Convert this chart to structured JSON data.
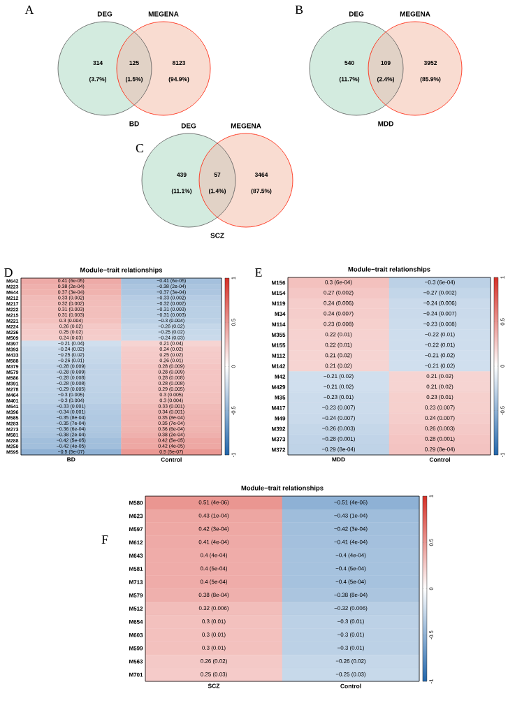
{
  "chart_data": [
    {
      "type": "other",
      "title": "A",
      "categories": [
        "DEG",
        null,
        "MEGENA"
      ],
      "colors": [
        "#d3ebdf",
        "#e1d2c6",
        "#f9dcd1"
      ],
      "values": [
        314,
        125,
        8123
      ],
      "data_labels": true,
      "annotations": [
        "(3.7%)",
        "(1.5%)",
        "(94.9%)"
      ],
      "xlabel": "BD"
    },
    {
      "type": "other",
      "title": "B",
      "categories": [
        "DEG",
        null,
        "MEGENA"
      ],
      "colors": [
        "#d3ebdf",
        "#e1d2c6",
        "#f9dcd1"
      ],
      "values": [
        540,
        109,
        3952
      ],
      "data_labels": true,
      "annotations": [
        "(11.7%)",
        "(2.4%)",
        "(85.9%)"
      ],
      "xlabel": "MDD"
    },
    {
      "type": "other",
      "title": "C",
      "categories": [
        "DEG",
        null,
        "MEGENA"
      ],
      "colors": [
        "#d3ebdf",
        "#e1d2c6",
        "#f9dcd1"
      ],
      "values": [
        439,
        57,
        3464
      ],
      "data_labels": true,
      "annotations": [
        "(11.1%)",
        "(1.4%)",
        "(87.5%)"
      ],
      "xlabel": "SCZ"
    },
    {
      "type": "heatmap",
      "title": "Module−trait relationships",
      "annotations": [
        "D"
      ],
      "categories": [
        "BD",
        "Control"
      ],
      "y_categories": [
        "M642",
        "M223",
        "M644",
        "M212",
        "M217",
        "M222",
        "M215",
        "M221",
        "M224",
        "M236",
        "M509",
        "M397",
        "M393",
        "M433",
        "M588",
        "M379",
        "M579",
        "M586",
        "M391",
        "M278",
        "M464",
        "M401",
        "M541",
        "M396",
        "M585",
        "M283",
        "M273",
        "M581",
        "M288",
        "M250",
        "M595"
      ],
      "cells": [
        [
          0.41,
          -0.41
        ],
        [
          0.38,
          -0.38
        ],
        [
          0.37,
          -0.37
        ],
        [
          0.33,
          -0.33
        ],
        [
          0.32,
          -0.32
        ],
        [
          0.31,
          -0.31
        ],
        [
          0.31,
          -0.31
        ],
        [
          0.3,
          -0.3
        ],
        [
          0.26,
          -0.26
        ],
        [
          0.25,
          -0.25
        ],
        [
          0.24,
          -0.24
        ],
        [
          -0.21,
          0.21
        ],
        [
          -0.24,
          0.24
        ],
        [
          -0.25,
          0.25
        ],
        [
          -0.26,
          0.26
        ],
        [
          -0.28,
          0.28
        ],
        [
          -0.28,
          0.28
        ],
        [
          -0.28,
          0.28
        ],
        [
          -0.28,
          0.28
        ],
        [
          -0.29,
          0.29
        ],
        [
          -0.3,
          0.3
        ],
        [
          -0.3,
          0.3
        ],
        [
          -0.33,
          0.33
        ],
        [
          -0.34,
          0.34
        ],
        [
          -0.35,
          0.35
        ],
        [
          -0.35,
          0.35
        ],
        [
          -0.36,
          0.36
        ],
        [
          -0.38,
          0.38
        ],
        [
          -0.42,
          0.42
        ],
        [
          -0.42,
          0.42
        ],
        [
          -0.5,
          0.5
        ]
      ],
      "cell_labels": [
        [
          "0.41 (6e-05)",
          "−0.41 (6e-05)"
        ],
        [
          "0.38 (2e-04)",
          "−0.38 (2e-04)"
        ],
        [
          "0.37 (3e-04)",
          "−0.37 (3e-04)"
        ],
        [
          "0.33 (0.002)",
          "−0.33 (0.002)"
        ],
        [
          "0.32 (0.002)",
          "−0.32 (0.002)"
        ],
        [
          "0.31 (0.003)",
          "−0.31 (0.003)"
        ],
        [
          "0.31 (0.003)",
          "−0.31 (0.003)"
        ],
        [
          "0.3 (0.004)",
          "−0.3 (0.004)"
        ],
        [
          "0.26 (0.02)",
          "−0.26 (0.02)"
        ],
        [
          "0.25 (0.02)",
          "−0.25 (0.02)"
        ],
        [
          "0.24 (0.03)",
          "−0.24 (0.03)"
        ],
        [
          "−0.21 (0.04)",
          "0.21 (0.04)"
        ],
        [
          "−0.24 (0.02)",
          "0.24 (0.02)"
        ],
        [
          "−0.25 (0.02)",
          "0.25 (0.02)"
        ],
        [
          "−0.26 (0.01)",
          "0.26 (0.01)"
        ],
        [
          "−0.28 (0.009)",
          "0.28 (0.009)"
        ],
        [
          "−0.28 (0.009)",
          "0.28 (0.009)"
        ],
        [
          "−0.28 (0.008)",
          "0.28 (0.008)"
        ],
        [
          "−0.28 (0.008)",
          "0.28 (0.008)"
        ],
        [
          "−0.29 (0.005)",
          "0.29 (0.005)"
        ],
        [
          "−0.3 (0.005)",
          "0.3 (0.005)"
        ],
        [
          "−0.3 (0.004)",
          "0.3 (0.004)"
        ],
        [
          "−0.33 (0.001)",
          "0.33 (0.001)"
        ],
        [
          "−0.34 (0.001)",
          "0.34 (0.001)"
        ],
        [
          "−0.35 (8e-04)",
          "0.35 (8e-04)"
        ],
        [
          "−0.35 (7e-04)",
          "0.35 (7e-04)"
        ],
        [
          "−0.36 (6e-04)",
          "0.36 (6e-04)"
        ],
        [
          "−0.38 (2e-04)",
          "0.38 (2e-04)"
        ],
        [
          "−0.42 (5e-05)",
          "0.42 (5e-05)"
        ],
        [
          "−0.42 (4e-05)",
          "0.42 (4e-05)"
        ],
        [
          "−0.5 (5e-07)",
          "0.5 (5e-07)"
        ]
      ],
      "clim": [
        -1,
        1
      ],
      "cticks": [
        -1,
        -0.5,
        0,
        0.5,
        1
      ]
    },
    {
      "type": "heatmap",
      "title": "Module−trait relationships",
      "annotations": [
        "E"
      ],
      "categories": [
        "MDD",
        "Control"
      ],
      "y_categories": [
        "M156",
        "M154",
        "M119",
        "M34",
        "M114",
        "M355",
        "M155",
        "M112",
        "M142",
        "M42",
        "M429",
        "M35",
        "M417",
        "M49",
        "M392",
        "M373",
        "M372"
      ],
      "cells": [
        [
          0.3,
          -0.3
        ],
        [
          0.27,
          -0.27
        ],
        [
          0.24,
          -0.24
        ],
        [
          0.24,
          -0.24
        ],
        [
          0.23,
          -0.23
        ],
        [
          0.22,
          -0.22
        ],
        [
          0.22,
          -0.22
        ],
        [
          0.21,
          -0.21
        ],
        [
          0.21,
          -0.21
        ],
        [
          -0.21,
          0.21
        ],
        [
          -0.21,
          0.21
        ],
        [
          -0.23,
          0.23
        ],
        [
          -0.23,
          0.23
        ],
        [
          -0.24,
          0.24
        ],
        [
          -0.26,
          0.26
        ],
        [
          -0.28,
          0.28
        ],
        [
          -0.29,
          0.29
        ]
      ],
      "cell_labels": [
        [
          "0.3 (6e-04)",
          "−0.3 (6e-04)"
        ],
        [
          "0.27 (0.002)",
          "−0.27 (0.002)"
        ],
        [
          "0.24 (0.006)",
          "−0.24 (0.006)"
        ],
        [
          "0.24 (0.007)",
          "−0.24 (0.007)"
        ],
        [
          "0.23 (0.008)",
          "−0.23 (0.008)"
        ],
        [
          "0.22 (0.01)",
          "−0.22 (0.01)"
        ],
        [
          "0.22 (0.01)",
          "−0.22 (0.01)"
        ],
        [
          "0.21 (0.02)",
          "−0.21 (0.02)"
        ],
        [
          "0.21 (0.02)",
          "−0.21 (0.02)"
        ],
        [
          "−0.21 (0.02)",
          "0.21 (0.02)"
        ],
        [
          "−0.21 (0.02)",
          "0.21 (0.02)"
        ],
        [
          "−0.23 (0.01)",
          "0.23 (0.01)"
        ],
        [
          "−0.23 (0.007)",
          "0.23 (0.007)"
        ],
        [
          "−0.24 (0.007)",
          "0.24 (0.007)"
        ],
        [
          "−0.26 (0.003)",
          "0.26 (0.003)"
        ],
        [
          "−0.28 (0.001)",
          "0.28 (0.001)"
        ],
        [
          "−0.29 (8e-04)",
          "0.29 (8e-04)"
        ]
      ],
      "clim": [
        -1,
        1
      ],
      "cticks": [
        -1,
        -0.5,
        0,
        0.5,
        1
      ]
    },
    {
      "type": "heatmap",
      "title": "Module−trait relationships",
      "annotations": [
        "F"
      ],
      "categories": [
        "SCZ",
        "Control"
      ],
      "y_categories": [
        "M580",
        "M623",
        "M597",
        "M612",
        "M643",
        "M581",
        "M713",
        "M579",
        "M512",
        "M654",
        "M603",
        "M599",
        "M563",
        "M701"
      ],
      "cells": [
        [
          0.51,
          -0.51
        ],
        [
          0.43,
          -0.43
        ],
        [
          0.42,
          -0.42
        ],
        [
          0.41,
          -0.41
        ],
        [
          0.4,
          -0.4
        ],
        [
          0.4,
          -0.4
        ],
        [
          0.4,
          -0.4
        ],
        [
          0.38,
          -0.38
        ],
        [
          0.32,
          -0.32
        ],
        [
          0.3,
          -0.3
        ],
        [
          0.3,
          -0.3
        ],
        [
          0.3,
          -0.3
        ],
        [
          0.26,
          -0.26
        ],
        [
          0.25,
          -0.25
        ]
      ],
      "cell_labels": [
        [
          "0.51 (4e-06)",
          "−0.51 (4e-06)"
        ],
        [
          "0.43 (1e-04)",
          "−0.43 (1e-04)"
        ],
        [
          "0.42 (3e-04)",
          "−0.42 (3e-04)"
        ],
        [
          "0.41 (4e-04)",
          "−0.41 (4e-04)"
        ],
        [
          "0.4 (4e-04)",
          "−0.4 (4e-04)"
        ],
        [
          "0.4 (5e-04)",
          "−0.4 (5e-04)"
        ],
        [
          "0.4 (5e-04)",
          "−0.4 (5e-04)"
        ],
        [
          "0.38 (8e-04)",
          "−0.38 (8e-04)"
        ],
        [
          "0.32 (0.006)",
          "−0.32 (0.006)"
        ],
        [
          "0.3 (0.01)",
          "−0.3 (0.01)"
        ],
        [
          "0.3 (0.01)",
          "−0.3 (0.01)"
        ],
        [
          "0.3 (0.01)",
          "−0.3 (0.01)"
        ],
        [
          "0.26 (0.02)",
          "−0.26 (0.02)"
        ],
        [
          "0.25 (0.03)",
          "−0.25 (0.03)"
        ]
      ],
      "clim": [
        -1,
        1
      ],
      "cticks": [
        -1,
        -0.5,
        0,
        0.5,
        1
      ]
    }
  ]
}
